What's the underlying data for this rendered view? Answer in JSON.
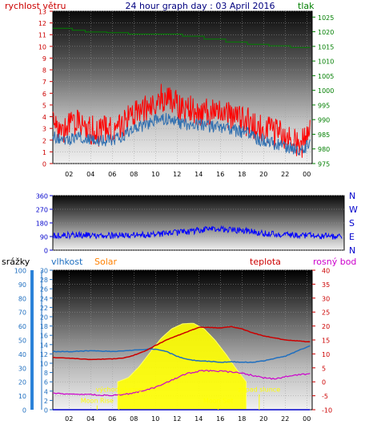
{
  "colors": {
    "wind_gust": "#ff0000",
    "wind_avg": "#2f6fb0",
    "pressure": "#007f00",
    "direction": "#0000ff",
    "humidity": "#1f6fc0",
    "temperature": "#cc0000",
    "dew_point": "#cc00cc",
    "solar": "#ffff00",
    "moon_marker": "#ffff00",
    "title": "#00007f",
    "solar_label": "#ff8000",
    "right_axis_label": "#0000cc"
  },
  "chart_data": [
    {
      "type": "line",
      "title": "24 hour graph day : 03 April 2016",
      "ylabel_left": "rychlost větru",
      "ylabel_right": "tlak",
      "x_tick_labels": [
        "02",
        "04",
        "06",
        "08",
        "10",
        "12",
        "14",
        "16",
        "18",
        "20",
        "22",
        "00"
      ],
      "x_tick_hours": [
        2,
        4,
        6,
        8,
        10,
        12,
        14,
        16,
        18,
        20,
        22,
        24
      ],
      "xlim": [
        0.5,
        24.5
      ],
      "y_left_ticks": [
        0,
        1,
        2,
        3,
        4,
        5,
        6,
        7,
        8,
        9,
        10,
        11,
        12,
        13
      ],
      "ylim_left": [
        0,
        13
      ],
      "y_right_ticks": [
        975,
        980,
        985,
        990,
        995,
        1000,
        1005,
        1010,
        1015,
        1020,
        1025
      ],
      "ylim_right": [
        975,
        1027
      ],
      "series": [
        {
          "axis": "left",
          "kind": "gust",
          "x": [
            0.5,
            1.5,
            2.5,
            3.5,
            4.5,
            5.5,
            6.5,
            7.5,
            8.5,
            9.5,
            10.5,
            11.5,
            12.5,
            13.5,
            14.5,
            15.5,
            16.5,
            17.5,
            18.5,
            19.5,
            20.5,
            21.5,
            22.5,
            23.5,
            24.3
          ],
          "y": [
            3.2,
            3.0,
            3.5,
            3.3,
            2.6,
            2.9,
            3.0,
            3.8,
            4.3,
            4.8,
            5.6,
            5.2,
            4.8,
            4.4,
            4.6,
            4.2,
            4.2,
            3.9,
            3.6,
            3.0,
            2.8,
            2.4,
            2.0,
            1.6,
            2.5
          ]
        },
        {
          "axis": "left",
          "kind": "average",
          "x": [
            0.5,
            1.5,
            2.5,
            3.5,
            4.5,
            5.5,
            6.5,
            7.5,
            8.5,
            9.5,
            10.5,
            11.5,
            12.5,
            13.5,
            14.5,
            15.5,
            16.5,
            17.5,
            18.5,
            19.5,
            20.5,
            21.5,
            22.5,
            23.5,
            24.3
          ],
          "y": [
            2.3,
            2.0,
            2.1,
            2.2,
            1.8,
            2.0,
            2.2,
            2.7,
            3.1,
            3.5,
            3.9,
            3.7,
            3.4,
            3.3,
            3.3,
            3.1,
            3.1,
            2.8,
            2.6,
            2.1,
            1.9,
            1.5,
            1.3,
            1.1,
            1.7
          ]
        },
        {
          "axis": "right",
          "kind": "pressure",
          "x": [
            0.5,
            2.3,
            2.3,
            3.5,
            3.5,
            5.5,
            5.5,
            7.5,
            7.5,
            12.5,
            12.5,
            14.5,
            14.5,
            16.5,
            16.5,
            18.5,
            18.5,
            20.5,
            20.5,
            22.5,
            22.5,
            24.3
          ],
          "y": [
            1021.2,
            1021.2,
            1020.5,
            1020.5,
            1019.9,
            1019.9,
            1019.7,
            1019.7,
            1019.2,
            1019.2,
            1018.5,
            1018.5,
            1017.5,
            1017.5,
            1016.5,
            1016.5,
            1015.7,
            1015.7,
            1015.2,
            1015.2,
            1014.6,
            1014.6
          ]
        }
      ]
    },
    {
      "type": "line",
      "title": "",
      "y_ticks": [
        0,
        90,
        180,
        270,
        360
      ],
      "ylim": [
        0,
        360
      ],
      "right_labels": [
        "N",
        "W",
        "S",
        "E",
        "N"
      ],
      "xlim": [
        0.5,
        24.5
      ],
      "series": [
        {
          "kind": "direction",
          "x": [
            0.5,
            2,
            4,
            6,
            8,
            10,
            12,
            13,
            14,
            16,
            18,
            20,
            22,
            24.3
          ],
          "y": [
            95,
            100,
            98,
            97,
            100,
            110,
            125,
            135,
            138,
            130,
            110,
            100,
            95,
            90
          ]
        }
      ]
    },
    {
      "type": "line",
      "title": "",
      "legend_labels": {
        "rain": "srážky",
        "humidity": "vlhkost",
        "solar": "Solar",
        "temperature": "teplota",
        "dew_point": "rosný bod"
      },
      "x_tick_labels": [
        "02",
        "04",
        "06",
        "08",
        "10",
        "12",
        "14",
        "16",
        "18",
        "20",
        "22",
        "00"
      ],
      "x_tick_hours": [
        2,
        4,
        6,
        8,
        10,
        12,
        14,
        16,
        18,
        20,
        22,
        24
      ],
      "xlim": [
        0.5,
        24.5
      ],
      "rain_ticks": [
        0,
        10,
        20,
        30,
        40,
        50,
        60,
        70,
        80,
        90,
        100
      ],
      "ylim_rain": [
        0,
        100
      ],
      "humidity_ticks": [
        0,
        2,
        4,
        6,
        8,
        10,
        12,
        14,
        16,
        18,
        20,
        22,
        24,
        26,
        28,
        30
      ],
      "ylim_humidity": [
        0,
        30
      ],
      "temp_ticks": [
        -10,
        -5,
        0,
        5,
        10,
        15,
        20,
        25,
        30,
        35,
        40
      ],
      "ylim_temp": [
        -10,
        40
      ],
      "annotations": [
        {
          "text": "východ slunce",
          "x": 6.6,
          "y": -3.6
        },
        {
          "text": "západ slunce",
          "x": 19.6,
          "y": -3.6
        },
        {
          "text": "Moon Rise",
          "x": 4.6,
          "y": -7.6
        },
        {
          "text": "Moon Set",
          "x": 15.8,
          "y": -7.6
        }
      ],
      "series": [
        {
          "kind": "temperature",
          "x": [
            0.5,
            2,
            4,
            6,
            7,
            8,
            9,
            10,
            11,
            12,
            13,
            14,
            15,
            16,
            17,
            18,
            19,
            20,
            22,
            24.3
          ],
          "y": [
            8.7,
            8.5,
            8.0,
            8.2,
            8.5,
            9.5,
            11.0,
            13.0,
            15.0,
            16.5,
            18.0,
            19.5,
            19.5,
            19.3,
            19.8,
            19.0,
            17.5,
            16.5,
            15.0,
            14.3
          ]
        },
        {
          "kind": "humidity",
          "x": [
            0.5,
            2,
            4,
            6,
            8,
            9,
            10,
            11,
            12,
            13,
            14,
            15,
            16,
            17,
            18,
            19,
            20,
            22,
            24.3
          ],
          "y": [
            12.5,
            12.5,
            12.7,
            12.5,
            12.8,
            13.0,
            13.0,
            12.5,
            11.5,
            10.8,
            10.5,
            10.4,
            10.2,
            10.3,
            10.2,
            10.2,
            10.5,
            11.5,
            13.8
          ]
        },
        {
          "kind": "dew_point",
          "x": [
            0.5,
            2,
            4,
            6,
            8,
            10,
            12,
            13,
            14,
            15,
            16,
            17,
            18,
            19,
            20,
            21,
            22,
            24.3
          ],
          "y": [
            -4.2,
            -4.3,
            -4.5,
            -5.0,
            -4.0,
            -2.0,
            1.5,
            3.0,
            3.8,
            4.0,
            3.8,
            3.5,
            3.0,
            2.3,
            1.5,
            1.0,
            1.8,
            3.0
          ]
        },
        {
          "kind": "solar",
          "x": [
            6.5,
            7.5,
            8.5,
            9.5,
            10.5,
            11.5,
            12.5,
            13.5,
            14.5,
            15.5,
            16.5,
            17.5,
            18.4
          ],
          "y": [
            0,
            1.5,
            5.5,
            10.5,
            15.5,
            19.0,
            20.8,
            21.0,
            19.0,
            15.0,
            10.0,
            4.5,
            0
          ]
        },
        {
          "kind": "rain",
          "x": [
            0.5,
            24.3
          ],
          "y": [
            0,
            0
          ]
        }
      ]
    }
  ]
}
